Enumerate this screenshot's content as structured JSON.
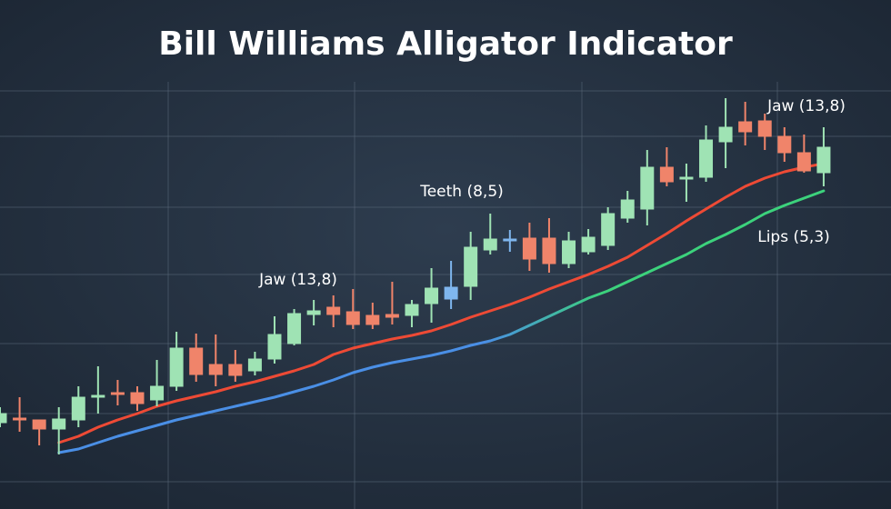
{
  "chart_data": {
    "type": "candlestick",
    "title": "Bill Williams Alligator Indicator",
    "ylim": [
      0,
      560
    ],
    "open": [
      95,
      100,
      98,
      88,
      98,
      123,
      128,
      128,
      120,
      135,
      177,
      159,
      159,
      152,
      165,
      182,
      214,
      222,
      217,
      213,
      214,
      213,
      226,
      231,
      245,
      285,
      295,
      298,
      298,
      270,
      283,
      290,
      320,
      330,
      376,
      363,
      365,
      404,
      426,
      427,
      410,
      392,
      370
    ],
    "high": [
      112,
      123,
      98,
      112,
      135,
      157,
      142,
      135,
      164,
      195,
      193,
      192,
      175,
      173,
      212,
      220,
      230,
      235,
      242,
      227,
      250,
      230,
      265,
      273,
      305,
      325,
      307,
      315,
      320,
      305,
      308,
      332,
      350,
      395,
      398,
      380,
      422,
      452,
      448,
      435,
      420,
      412,
      420
    ],
    "low": [
      90,
      85,
      70,
      60,
      90,
      105,
      114,
      108,
      113,
      130,
      140,
      135,
      140,
      147,
      160,
      180,
      202,
      200,
      198,
      198,
      203,
      200,
      205,
      220,
      230,
      280,
      283,
      262,
      260,
      265,
      280,
      285,
      315,
      312,
      355,
      338,
      360,
      375,
      400,
      395,
      382,
      370,
      355
    ],
    "close": [
      105,
      98,
      88,
      99,
      123,
      125,
      126,
      116,
      135,
      177,
      148,
      148,
      147,
      165,
      192,
      215,
      218,
      214,
      203,
      203,
      211,
      225,
      243,
      244,
      288,
      297,
      297,
      275,
      270,
      295,
      299,
      325,
      340,
      376,
      360,
      365,
      406,
      420,
      415,
      410,
      392,
      372,
      398
    ],
    "colors": [
      "#9fe3b4",
      "#f0846a",
      "#f0846a",
      "#9fe3b4",
      "#9fe3b4",
      "#9fe3b4",
      "#f0846a",
      "#f0846a",
      "#9fe3b4",
      "#9fe3b4",
      "#f0846a",
      "#f0846a",
      "#f0846a",
      "#9fe3b4",
      "#9fe3b4",
      "#9fe3b4",
      "#9fe3b4",
      "#f0846a",
      "#f0846a",
      "#f0846a",
      "#f0846a",
      "#9fe3b4",
      "#9fe3b4",
      "#7fb6ee",
      "#9fe3b4",
      "#9fe3b4",
      "#7fb6ee",
      "#f0846a",
      "#f0846a",
      "#9fe3b4",
      "#9fe3b4",
      "#9fe3b4",
      "#9fe3b4",
      "#9fe3b4",
      "#f0846a",
      "#9fe3b4",
      "#9fe3b4",
      "#9fe3b4",
      "#f0846a",
      "#f0846a",
      "#f0846a",
      "#f0846a",
      "#9fe3b4"
    ],
    "series": [
      {
        "colors": [
          "#ee4a35",
          "#ee4a35"
        ],
        "values": [
          null,
          null,
          null,
          73,
          80,
          90,
          98,
          105,
          113,
          119,
          124,
          129,
          135,
          140,
          146,
          152,
          159,
          170,
          177,
          182,
          187,
          191,
          196,
          203,
          211,
          218,
          225,
          233,
          242,
          250,
          258,
          267,
          277,
          290,
          303,
          317,
          330,
          343,
          355,
          364,
          371,
          376,
          380
        ]
      },
      {
        "colors": [
          "#4a8fe6",
          "#3cd27c"
        ],
        "values": [
          null,
          null,
          null,
          62,
          66,
          73,
          80,
          86,
          92,
          98,
          103,
          108,
          113,
          118,
          123,
          129,
          135,
          142,
          150,
          156,
          161,
          165,
          169,
          174,
          180,
          185,
          192,
          202,
          212,
          222,
          232,
          240,
          250,
          260,
          270,
          280,
          292,
          302,
          313,
          325,
          334,
          342,
          350
        ]
      }
    ],
    "annotations": [
      "Jaw (13,8)",
      "Teeth (8,5)",
      "Jaw (13,8)",
      "Lips (5,3)"
    ]
  }
}
